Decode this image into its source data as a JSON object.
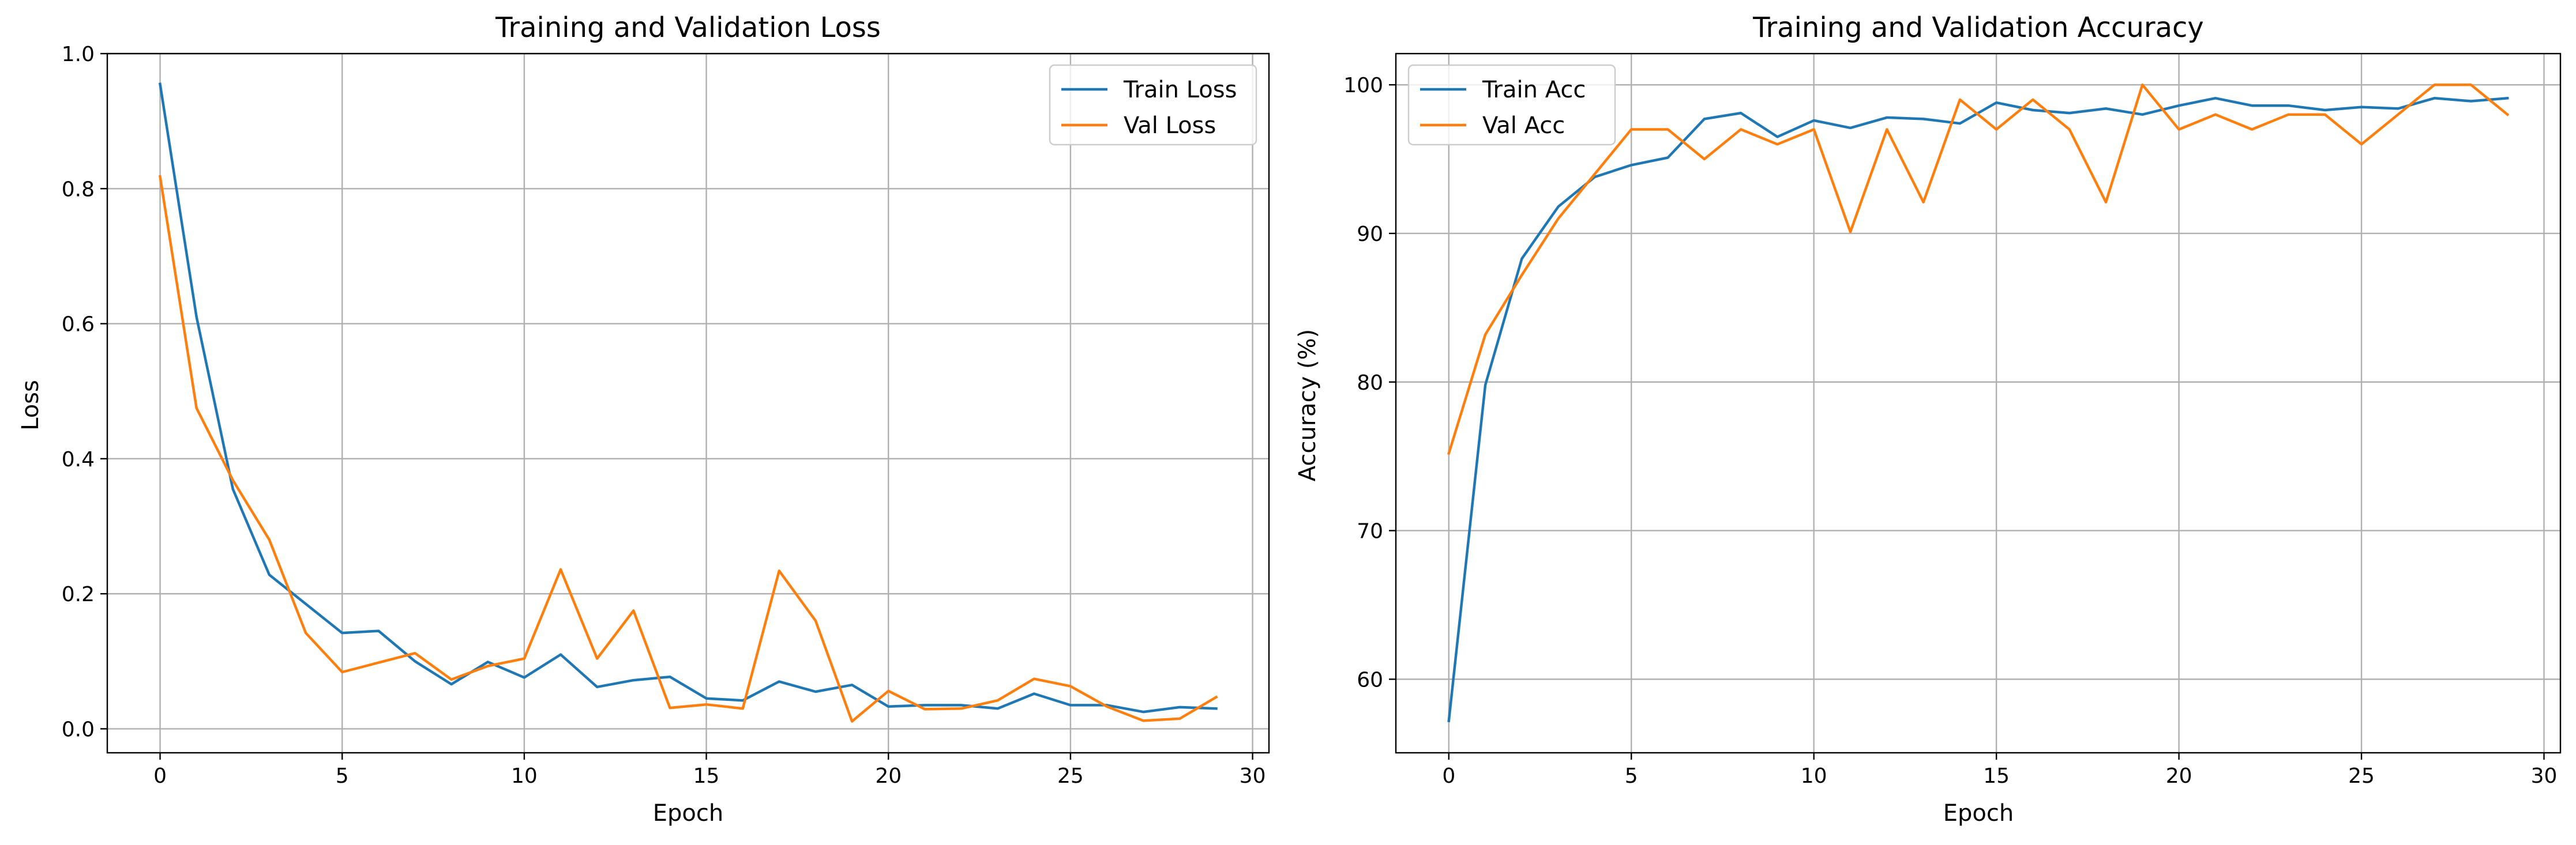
{
  "chart_data": [
    {
      "type": "line",
      "title": "Training and Validation Loss",
      "xlabel": "Epoch",
      "ylabel": "Loss",
      "xlim": [
        -1.45,
        30.45
      ],
      "ylim": [
        -0.0355,
        1.0
      ],
      "xticks": [
        0,
        5,
        10,
        15,
        20,
        25,
        30
      ],
      "yticks": [
        0.0,
        0.2,
        0.4,
        0.6,
        0.8,
        1.0
      ],
      "ytick_labels": [
        "0.0",
        "0.2",
        "0.4",
        "0.6",
        "0.8",
        "1.0"
      ],
      "grid": true,
      "legend_position": "upper right",
      "x": [
        0,
        1,
        2,
        3,
        4,
        5,
        6,
        7,
        8,
        9,
        10,
        11,
        12,
        13,
        14,
        15,
        16,
        17,
        18,
        19,
        20,
        21,
        22,
        23,
        24,
        25,
        26,
        27,
        28,
        29
      ],
      "series": [
        {
          "name": "Train Loss",
          "color": "#1f77b4",
          "values": [
            0.955,
            0.61,
            0.355,
            0.228,
            0.185,
            0.142,
            0.145,
            0.1,
            0.066,
            0.099,
            0.076,
            0.11,
            0.062,
            0.072,
            0.077,
            0.045,
            0.042,
            0.07,
            0.055,
            0.065,
            0.033,
            0.035,
            0.035,
            0.03,
            0.052,
            0.035,
            0.035,
            0.025,
            0.032,
            0.03
          ]
        },
        {
          "name": "Val Loss",
          "color": "#ff7f0e",
          "values": [
            0.818,
            0.475,
            0.368,
            0.28,
            0.142,
            0.084,
            0.098,
            0.112,
            0.073,
            0.093,
            0.104,
            0.236,
            0.104,
            0.175,
            0.031,
            0.036,
            0.03,
            0.234,
            0.16,
            0.011,
            0.056,
            0.029,
            0.03,
            0.042,
            0.074,
            0.063,
            0.033,
            0.012,
            0.015,
            0.047
          ]
        }
      ]
    },
    {
      "type": "line",
      "title": "Training and Validation Accuracy",
      "xlabel": "Epoch",
      "ylabel": "Accuracy (%)",
      "xlim": [
        -1.45,
        30.45
      ],
      "ylim": [
        55.05,
        102.1
      ],
      "xticks": [
        0,
        5,
        10,
        15,
        20,
        25,
        30
      ],
      "yticks": [
        60,
        70,
        80,
        90,
        100
      ],
      "ytick_labels": [
        "60",
        "70",
        "80",
        "90",
        "100"
      ],
      "grid": true,
      "legend_position": "upper left",
      "x": [
        0,
        1,
        2,
        3,
        4,
        5,
        6,
        7,
        8,
        9,
        10,
        11,
        12,
        13,
        14,
        15,
        16,
        17,
        18,
        19,
        20,
        21,
        22,
        23,
        24,
        25,
        26,
        27,
        28,
        29
      ],
      "series": [
        {
          "name": "Train Acc",
          "color": "#1f77b4",
          "values": [
            57.2,
            79.8,
            88.3,
            91.8,
            93.8,
            94.6,
            95.1,
            97.7,
            98.1,
            96.5,
            97.6,
            97.1,
            97.8,
            97.7,
            97.4,
            98.8,
            98.3,
            98.1,
            98.4,
            98.0,
            98.6,
            99.1,
            98.6,
            98.6,
            98.3,
            98.5,
            98.4,
            99.1,
            98.9,
            99.1
          ]
        },
        {
          "name": "Val Acc",
          "color": "#ff7f0e",
          "values": [
            75.2,
            83.2,
            87.2,
            91.0,
            94.0,
            97.0,
            97.0,
            95.0,
            97.0,
            96.0,
            97.0,
            90.1,
            97.0,
            92.1,
            99.0,
            97.0,
            99.0,
            97.0,
            92.1,
            100.0,
            97.0,
            98.0,
            97.0,
            98.0,
            98.0,
            96.0,
            98.0,
            100.0,
            100.0,
            98.0
          ]
        }
      ]
    }
  ]
}
